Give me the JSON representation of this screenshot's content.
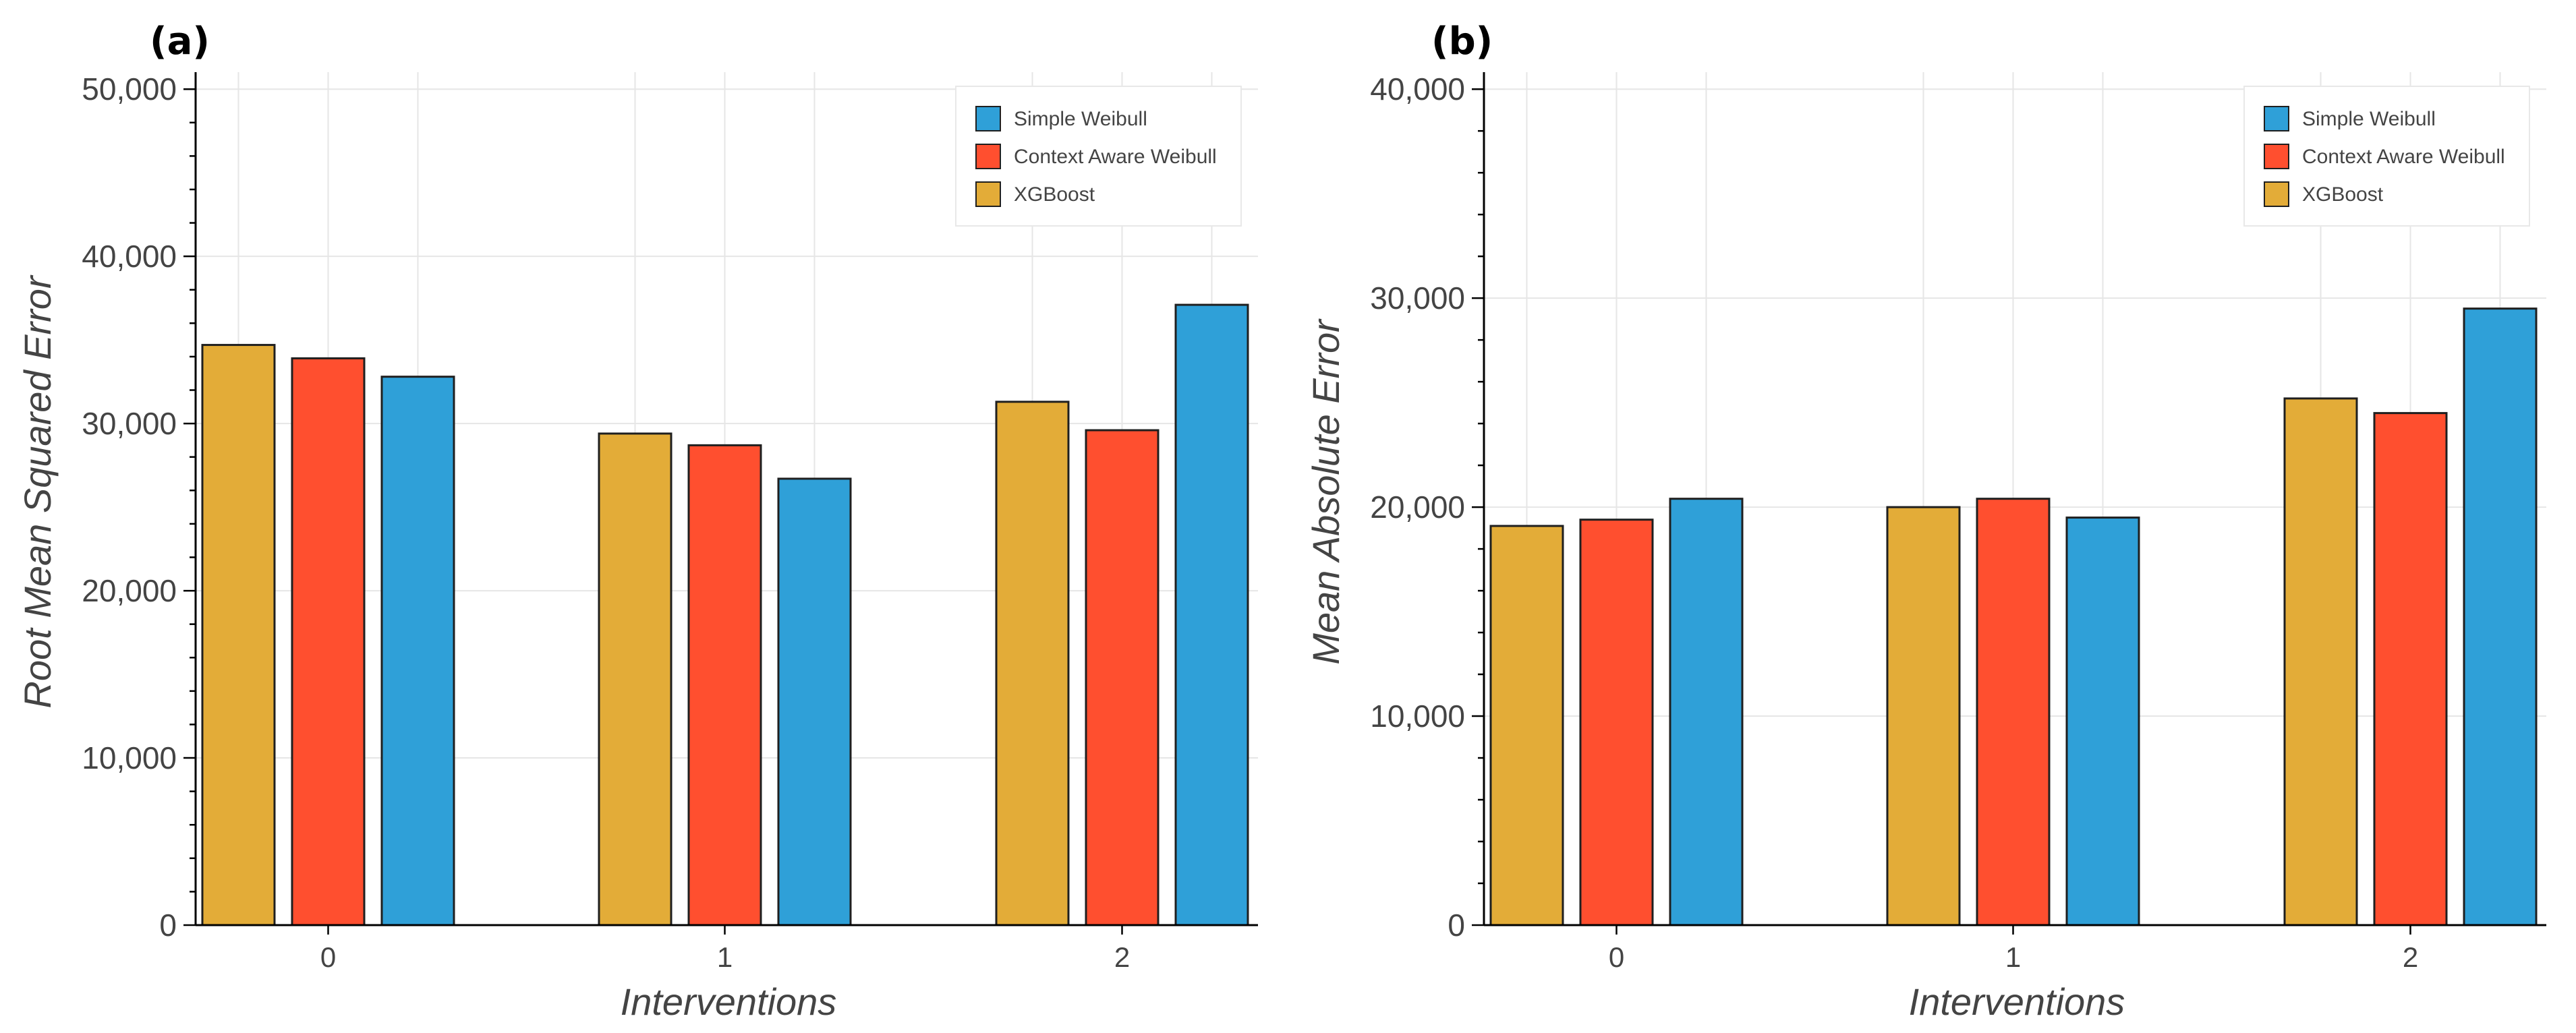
{
  "colors": {
    "Simple Weibull": "#2fa0d8",
    "Context Aware Weibull": "#ff4f2f",
    "XGBoost": "#e3ac38"
  },
  "chart_data": [
    {
      "panel_label": "(a)",
      "type": "bar",
      "categories": [
        "0",
        "1",
        "2"
      ],
      "bar_order": [
        "XGBoost",
        "Context Aware Weibull",
        "Simple Weibull"
      ],
      "series": [
        {
          "name": "XGBoost",
          "values": [
            34700,
            29400,
            31300
          ]
        },
        {
          "name": "Context Aware Weibull",
          "values": [
            33900,
            28700,
            29600
          ]
        },
        {
          "name": "Simple Weibull",
          "values": [
            32800,
            26700,
            37100
          ]
        }
      ],
      "xlabel": "Interventions",
      "ylabel": "Root Mean Squared Error",
      "ylim": [
        0,
        51500
      ],
      "yticks": [
        0,
        10000,
        20000,
        30000,
        40000,
        50000
      ],
      "ytick_labels": [
        "0",
        "10,000",
        "20,000",
        "30,000",
        "40,000",
        "50,000"
      ],
      "legend": [
        "Simple Weibull",
        "Context Aware Weibull",
        "XGBoost"
      ],
      "legend_position": "top-right",
      "grid": true
    },
    {
      "panel_label": "(b)",
      "type": "bar",
      "categories": [
        "0",
        "1",
        "2"
      ],
      "bar_order": [
        "XGBoost",
        "Context Aware Weibull",
        "Simple Weibull"
      ],
      "series": [
        {
          "name": "XGBoost",
          "values": [
            19100,
            20000,
            25200
          ]
        },
        {
          "name": "Context Aware Weibull",
          "values": [
            19400,
            20400,
            24500
          ]
        },
        {
          "name": "Simple Weibull",
          "values": [
            20400,
            19500,
            29500
          ]
        }
      ],
      "xlabel": "Interventions",
      "ylabel": "Mean Absolute Error",
      "ylim": [
        0,
        41200
      ],
      "yticks": [
        0,
        10000,
        20000,
        30000,
        40000
      ],
      "ytick_labels": [
        "0",
        "10,000",
        "20,000",
        "30,000",
        "40,000"
      ],
      "legend": [
        "Simple Weibull",
        "Context Aware Weibull",
        "XGBoost"
      ],
      "legend_position": "top-right",
      "grid": true
    }
  ]
}
